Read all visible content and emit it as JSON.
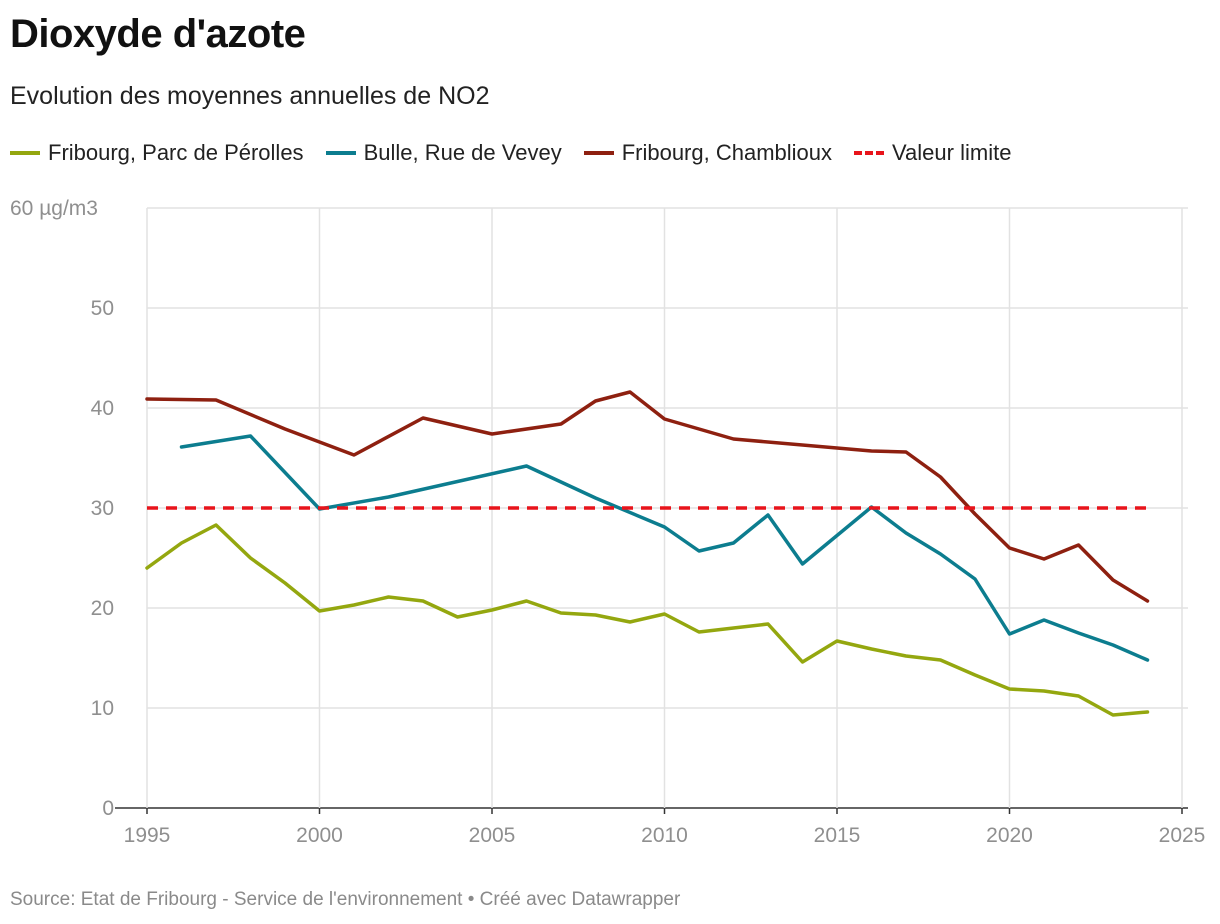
{
  "title": "Dioxyde d'azote",
  "subtitle": "Evolution des moyennes annuelles de NO2",
  "source": "Source: Etat de Fribourg - Service de l'environnement • Créé avec Datawrapper",
  "chart_data": {
    "type": "line",
    "title": "Dioxyde d'azote",
    "subtitle": "Evolution des moyennes annuelles de NO2",
    "xlabel": "",
    "ylabel": "µg/m3",
    "xlim": [
      1995,
      2025
    ],
    "ylim": [
      0,
      60
    ],
    "xticks": [
      "1995",
      "2000",
      "2005",
      "2010",
      "2015",
      "2020",
      "2025"
    ],
    "yticks": [
      "0",
      "10",
      "20",
      "30",
      "40",
      "50",
      "60 µg/m3"
    ],
    "grid": true,
    "legend_position": "top-left",
    "series": [
      {
        "name": "Fribourg, Parc de Pérolles",
        "color": "#94a70f",
        "style": "solid",
        "x": [
          1995,
          1996,
          1997,
          1998,
          1999,
          2000,
          2001,
          2002,
          2003,
          2004,
          2005,
          2006,
          2007,
          2008,
          2009,
          2010,
          2011,
          2012,
          2013,
          2014,
          2015,
          2016,
          2017,
          2018,
          2019,
          2020,
          2021,
          2022,
          2023,
          2024
        ],
        "y": [
          24.0,
          26.5,
          28.3,
          25.0,
          22.5,
          19.7,
          20.3,
          21.1,
          20.7,
          19.1,
          19.8,
          20.7,
          19.5,
          19.3,
          18.6,
          19.4,
          17.6,
          18.0,
          18.4,
          14.6,
          16.7,
          15.9,
          15.2,
          14.8,
          13.3,
          11.9,
          11.7,
          11.2,
          9.3,
          9.6
        ]
      },
      {
        "name": "Bulle, Rue de Vevey",
        "color": "#0c7d8f",
        "style": "solid",
        "x": [
          1996,
          1998,
          2000,
          2002,
          2006,
          2008,
          2010,
          2011,
          2012,
          2013,
          2014,
          2016,
          2017,
          2018,
          2019,
          2020,
          2021,
          2022,
          2023,
          2024
        ],
        "y": [
          36.1,
          37.2,
          29.9,
          31.1,
          34.2,
          31.0,
          28.1,
          25.7,
          26.5,
          29.3,
          24.4,
          30.1,
          27.5,
          25.4,
          22.9,
          17.4,
          18.8,
          17.5,
          16.3,
          14.8
        ]
      },
      {
        "name": "Fribourg, Chamblioux",
        "color": "#8e2010",
        "style": "solid",
        "x": [
          1995,
          1997,
          1999,
          2001,
          2003,
          2005,
          2007,
          2008,
          2009,
          2010,
          2012,
          2016,
          2017,
          2018,
          2019,
          2020,
          2021,
          2022,
          2023,
          2024
        ],
        "y": [
          40.9,
          40.8,
          37.9,
          35.3,
          39.0,
          37.4,
          38.4,
          40.7,
          41.6,
          38.9,
          36.9,
          35.7,
          35.6,
          33.1,
          29.4,
          26.0,
          24.9,
          26.3,
          22.8,
          20.7
        ]
      },
      {
        "name": "Valeur limite",
        "color": "#e8141b",
        "style": "dashed",
        "x": [
          1995,
          2024
        ],
        "y": [
          30,
          30
        ]
      }
    ]
  }
}
